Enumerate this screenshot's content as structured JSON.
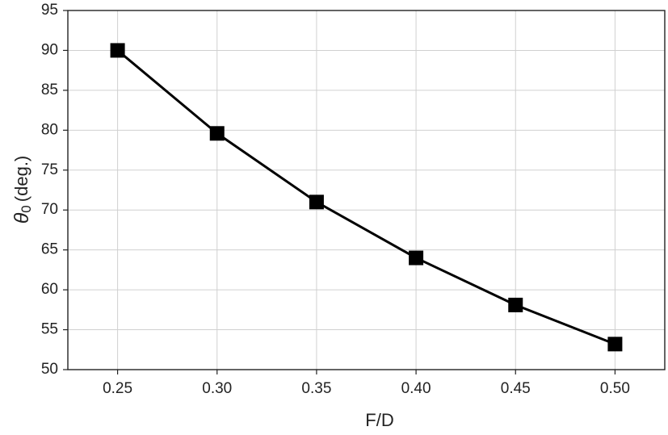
{
  "chart_data": {
    "type": "line",
    "xlabel": "F/D",
    "ylabel": {
      "symbol": "θ",
      "subscript": "0",
      "unit": "(deg.)"
    },
    "x": [
      0.25,
      0.3,
      0.35,
      0.4,
      0.45,
      0.5
    ],
    "values": [
      90,
      79.6,
      71,
      64,
      58.1,
      53.2
    ],
    "color": "#000000",
    "xlim": [
      0.225,
      0.525
    ],
    "xticks": [
      0.25,
      {
        "value": 0.3,
        "label": "0.30"
      },
      0.35,
      {
        "value": 0.4,
        "label": "0.40"
      },
      0.45,
      {
        "value": 0.5,
        "label": "0.50"
      }
    ],
    "ylim": [
      50,
      95
    ],
    "yticks": [
      50,
      55,
      60,
      65,
      70,
      75,
      80,
      85,
      90,
      95
    ],
    "grid": true
  }
}
